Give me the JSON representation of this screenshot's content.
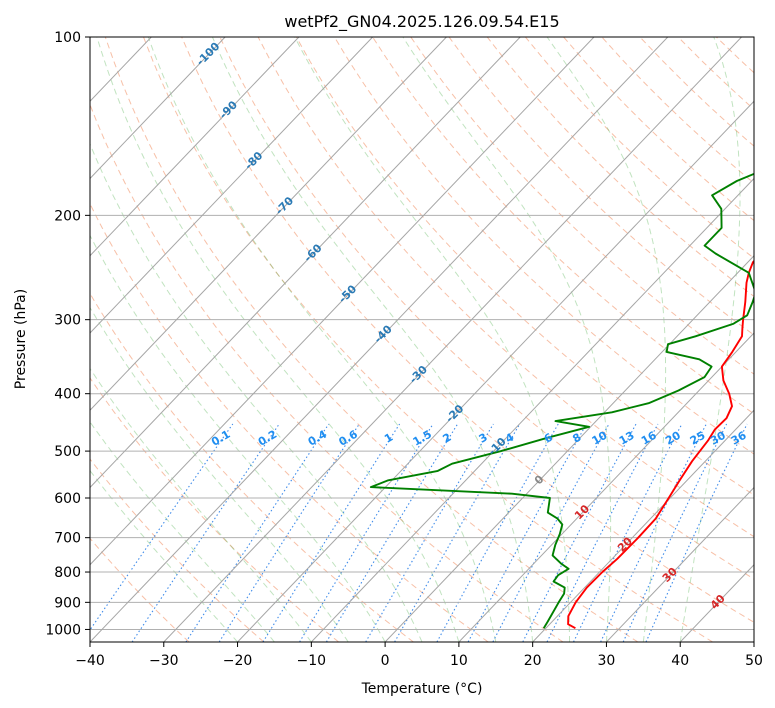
{
  "chart_data": {
    "type": "line",
    "title": "wetPf2_GN04.2025.126.09.54.E15",
    "xlabel": "Temperature (°C)",
    "ylabel": "Pressure (hPa)",
    "xlim": [
      -40,
      50
    ],
    "ylim": [
      1050,
      100
    ],
    "y_scale": "log",
    "grid": true,
    "x_ticks": [
      "−40",
      "−30",
      "−20",
      "−10",
      "0",
      "10",
      "20",
      "30",
      "40",
      "50"
    ],
    "x_tick_values": [
      -40,
      -30,
      -20,
      -10,
      0,
      10,
      20,
      30,
      40,
      50
    ],
    "y_ticks": [
      "100",
      "200",
      "300",
      "400",
      "500",
      "600",
      "700",
      "800",
      "900",
      "1000"
    ],
    "y_tick_values": [
      100,
      200,
      300,
      400,
      500,
      600,
      700,
      800,
      900,
      1000
    ],
    "series": [
      {
        "key": "temperature",
        "color": "#ff0000",
        "points": [
          [
            24.0,
            995
          ],
          [
            22.5,
            980
          ],
          [
            21.5,
            950
          ],
          [
            20.7,
            900
          ],
          [
            20.3,
            850
          ],
          [
            20.4,
            800
          ],
          [
            20.7,
            760
          ],
          [
            20.8,
            700
          ],
          [
            20.7,
            650
          ],
          [
            19.8,
            600
          ],
          [
            19.0,
            560
          ],
          [
            18.2,
            520
          ],
          [
            17.7,
            480
          ],
          [
            17.2,
            460
          ],
          [
            17.3,
            440
          ],
          [
            16.5,
            420
          ],
          [
            14.5,
            400
          ],
          [
            12.0,
            380
          ],
          [
            10.0,
            360
          ],
          [
            9.5,
            340
          ],
          [
            8.8,
            320
          ],
          [
            7.8,
            310
          ],
          [
            6.8,
            300
          ],
          [
            4.8,
            280
          ],
          [
            2.5,
            260
          ],
          [
            1.5,
            250
          ],
          [
            0.7,
            240
          ],
          [
            0.6,
            220
          ],
          [
            0.7,
            200
          ],
          [
            0.9,
            185
          ],
          [
            1.1,
            170
          ],
          [
            0.7,
            160
          ],
          [
            0.0,
            150
          ],
          [
            -0.8,
            140
          ],
          [
            -1.5,
            130
          ],
          [
            -2.2,
            120
          ],
          [
            -1.8,
            112
          ],
          [
            -0.5,
            107
          ],
          [
            0.5,
            102
          ],
          [
            1.0,
            100
          ]
        ]
      },
      {
        "key": "dewpoint",
        "color": "#008000",
        "points": [
          [
            19.7,
            995
          ],
          [
            19.4,
            970
          ],
          [
            18.4,
            900
          ],
          [
            18.0,
            870
          ],
          [
            17.3,
            850
          ],
          [
            15.0,
            830
          ],
          [
            14.8,
            810
          ],
          [
            15.4,
            790
          ],
          [
            13.8,
            775
          ],
          [
            11.5,
            750
          ],
          [
            10.5,
            720
          ],
          [
            9.7,
            690
          ],
          [
            8.8,
            665
          ],
          [
            7.4,
            650
          ],
          [
            5.3,
            635
          ],
          [
            3.7,
            600
          ],
          [
            -2.0,
            590
          ],
          [
            -22.0,
            575
          ],
          [
            -20.5,
            560
          ],
          [
            -15.0,
            540
          ],
          [
            -14.0,
            525
          ],
          [
            -9.0,
            500
          ],
          [
            -4.5,
            475
          ],
          [
            -0.2,
            455
          ],
          [
            -5.5,
            445
          ],
          [
            1.0,
            430
          ],
          [
            4.8,
            415
          ],
          [
            7.2,
            395
          ],
          [
            9.0,
            375
          ],
          [
            8.6,
            360
          ],
          [
            6.0,
            350
          ],
          [
            0.6,
            340
          ],
          [
            -0.2,
            330
          ],
          [
            2.5,
            320
          ],
          [
            6.0,
            305
          ],
          [
            6.8,
            295
          ],
          [
            5.8,
            280
          ],
          [
            5.0,
            270
          ],
          [
            1.5,
            250
          ],
          [
            -5.5,
            232
          ],
          [
            -8.0,
            225
          ],
          [
            -8.0,
            210
          ],
          [
            -10.5,
            195
          ],
          [
            -13.5,
            185
          ],
          [
            -12.0,
            175
          ],
          [
            -9.0,
            165
          ],
          [
            -7.0,
            155
          ],
          [
            -6.8,
            140
          ],
          [
            -5.0,
            125
          ],
          [
            -2.5,
            110
          ],
          [
            0.5,
            100
          ]
        ]
      }
    ],
    "isotherm_labels": [
      "-100",
      "-90",
      "-80",
      "-70",
      "-60",
      "-50",
      "-40",
      "-30",
      "-20",
      "-10",
      "0",
      "10",
      "20",
      "30",
      "40"
    ],
    "mixing_ratio_labels": [
      "0.1",
      "0.2",
      "0.4",
      "0.6",
      "1",
      "1.5",
      "2",
      "3",
      "4",
      "6",
      "8",
      "10",
      "13",
      "16",
      "20",
      "25",
      "30",
      "36"
    ]
  }
}
